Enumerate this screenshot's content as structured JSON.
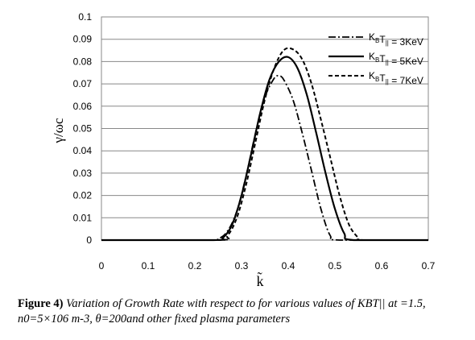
{
  "chart_data": {
    "type": "line",
    "xlabel": "k̃",
    "ylabel": "γ/ωc",
    "xlim": [
      0,
      0.7
    ],
    "ylim": [
      0,
      0.1
    ],
    "x_ticks": [
      "0",
      "0.1",
      "0.2",
      "0.3",
      "0.4",
      "0.5",
      "0.6",
      "0.7"
    ],
    "y_ticks": [
      "0",
      "0.01",
      "0.02",
      "0.03",
      "0.04",
      "0.05",
      "0.06",
      "0.07",
      "0.08",
      "0.09",
      "0.1"
    ],
    "grid": "horizontal",
    "legend_position": "top-right",
    "series": [
      {
        "name": "KBT|| = 3KeV",
        "legend_main": "K",
        "legend_sub1": "B",
        "legend_mid": "T",
        "legend_sub2": "||",
        "legend_tail": " = 3KeV",
        "style": "dashdot",
        "x": [
          0,
          0.23,
          0.25,
          0.27,
          0.29,
          0.31,
          0.33,
          0.35,
          0.37,
          0.38,
          0.39,
          0.41,
          0.43,
          0.45,
          0.47,
          0.49,
          0.51,
          1
        ],
        "y": [
          0,
          0,
          0.0005,
          0.004,
          0.013,
          0.029,
          0.048,
          0.064,
          0.0725,
          0.0735,
          0.072,
          0.063,
          0.048,
          0.031,
          0.014,
          0.002,
          0,
          0
        ]
      },
      {
        "name": "KBT|| = 5KeV",
        "legend_main": "K",
        "legend_sub1": "B",
        "legend_mid": "T",
        "legend_sub2": "||",
        "legend_tail": " = 5KeV",
        "style": "solid",
        "x": [
          0,
          0.24,
          0.26,
          0.28,
          0.3,
          0.32,
          0.34,
          0.36,
          0.38,
          0.4,
          0.42,
          0.44,
          0.46,
          0.48,
          0.5,
          0.52,
          0.54,
          1
        ],
        "y": [
          0,
          0,
          0.001,
          0.007,
          0.02,
          0.038,
          0.057,
          0.072,
          0.08,
          0.082,
          0.077,
          0.065,
          0.048,
          0.03,
          0.014,
          0.003,
          0,
          0
        ]
      },
      {
        "name": "KBT|| = 7KeV",
        "legend_main": "K",
        "legend_sub1": "B",
        "legend_mid": "T",
        "legend_sub2": "||",
        "legend_tail": " = 7KeV",
        "style": "dashed",
        "x": [
          0,
          0.25,
          0.27,
          0.29,
          0.31,
          0.33,
          0.35,
          0.37,
          0.39,
          0.41,
          0.43,
          0.45,
          0.47,
          0.49,
          0.51,
          0.53,
          0.55,
          0.56,
          1
        ],
        "y": [
          0,
          0,
          0.002,
          0.01,
          0.025,
          0.044,
          0.063,
          0.077,
          0.085,
          0.0855,
          0.081,
          0.07,
          0.054,
          0.037,
          0.02,
          0.007,
          0.001,
          0,
          0
        ]
      }
    ]
  },
  "caption": {
    "lead": "Figure 4)",
    "rest": " Variation of Growth Rate with respect to for various values of KBT|| at =1.5, n0=5×106 m-3, θ=200and other fixed plasma parameters"
  }
}
